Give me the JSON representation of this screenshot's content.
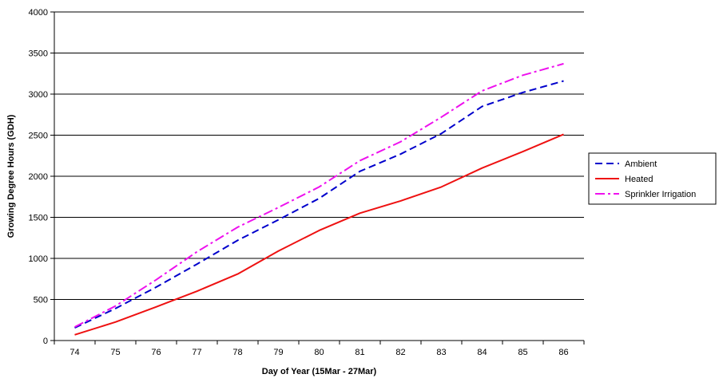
{
  "chart_data": {
    "type": "line",
    "title": "",
    "xlabel": "Day of Year (15Mar - 27Mar)",
    "ylabel": "Growing Degree Hours (GDH)",
    "x": [
      74,
      75,
      76,
      77,
      78,
      79,
      80,
      81,
      82,
      83,
      84,
      85,
      86
    ],
    "ylim": [
      0,
      4000
    ],
    "yticks": [
      0,
      500,
      1000,
      1500,
      2000,
      2500,
      3000,
      3500,
      4000
    ],
    "grid": "horizontal",
    "legend_position": "right",
    "series": [
      {
        "name": "Ambient",
        "color": "#0000cc",
        "style": "dashed",
        "values": [
          155,
          390,
          650,
          930,
          1220,
          1470,
          1730,
          2060,
          2270,
          2520,
          2850,
          3020,
          3160
        ]
      },
      {
        "name": "Heated",
        "color": "#ee1111",
        "style": "solid",
        "values": [
          70,
          225,
          410,
          600,
          810,
          1090,
          1340,
          1550,
          1700,
          1870,
          2100,
          2300,
          2510
        ]
      },
      {
        "name": "Sprinkler Irrigation",
        "color": "#ee11ee",
        "style": "dash-dot",
        "values": [
          165,
          420,
          740,
          1080,
          1380,
          1620,
          1870,
          2190,
          2420,
          2720,
          3040,
          3230,
          3370
        ]
      }
    ]
  }
}
